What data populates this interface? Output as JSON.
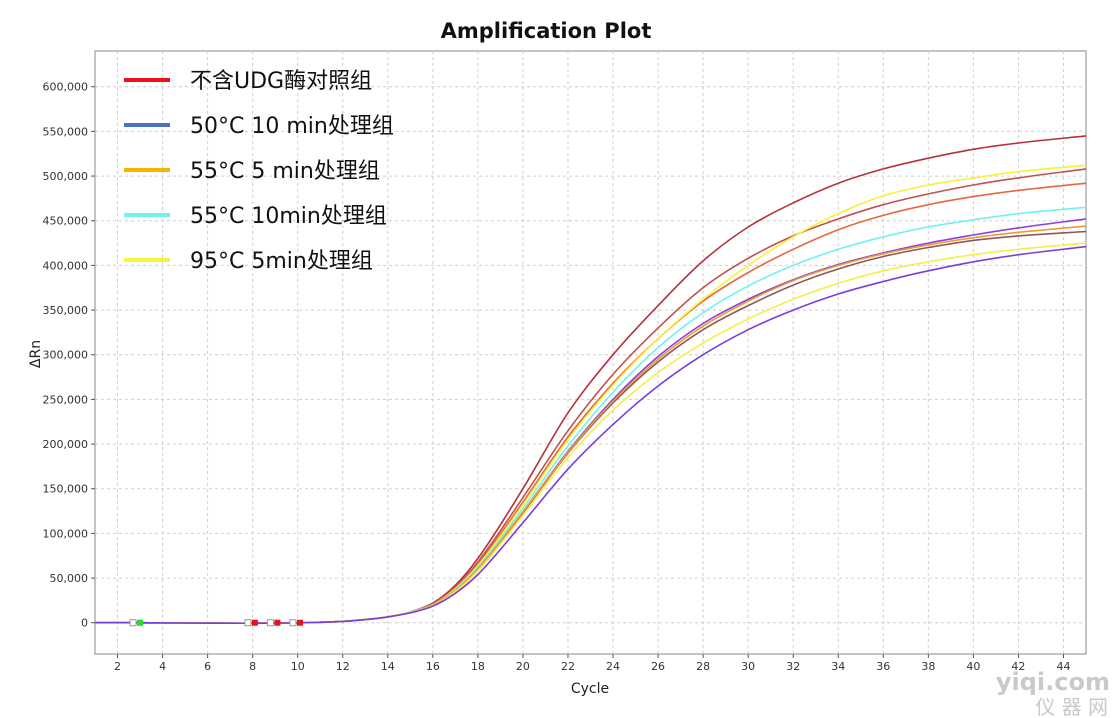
{
  "chart_data": {
    "type": "line",
    "title": "Amplification Plot",
    "xlabel": "Cycle",
    "ylabel": "ΔRn",
    "xlim": [
      1,
      45
    ],
    "ylim": [
      -35000,
      640000
    ],
    "x_ticks": [
      2,
      4,
      6,
      8,
      10,
      12,
      14,
      16,
      18,
      20,
      22,
      24,
      26,
      28,
      30,
      32,
      34,
      36,
      38,
      40,
      42,
      44
    ],
    "y_ticks": [
      0,
      50000,
      100000,
      150000,
      200000,
      250000,
      300000,
      350000,
      400000,
      450000,
      500000,
      550000,
      600000
    ],
    "grid": true,
    "legend_position": "top-left",
    "legend": [
      {
        "label": "不含UDG酶对照组",
        "color": "#e8141c"
      },
      {
        "label": "50°C 10 min处理组",
        "color": "#4a72c4"
      },
      {
        "label": "55°C 5 min处理组",
        "color": "#f5b400"
      },
      {
        "label": "55°C 10min处理组",
        "color": "#6ff2f2"
      },
      {
        "label": "95°C 5min处理组",
        "color": "#f7f23a"
      }
    ],
    "x": [
      1,
      12,
      13,
      14,
      15,
      16,
      17,
      18,
      20,
      22,
      24,
      26,
      28,
      30,
      32,
      34,
      36,
      38,
      40,
      42,
      45
    ],
    "series": [
      {
        "color": "#b5323d",
        "values": [
          0,
          1500,
          3500,
          6500,
          12000,
          22000,
          42000,
          72000,
          150000,
          235000,
          300000,
          355000,
          405000,
          443000,
          470000,
          492000,
          508000,
          520000,
          530000,
          537000,
          545000
        ]
      },
      {
        "color": "#c0504d",
        "values": [
          0,
          1500,
          3500,
          6500,
          12000,
          21000,
          40000,
          68000,
          140000,
          215000,
          278000,
          330000,
          375000,
          408000,
          433000,
          452000,
          468000,
          480000,
          490000,
          498000,
          508000
        ]
      },
      {
        "color": "#e8663c",
        "values": [
          0,
          1500,
          3500,
          6500,
          12000,
          21000,
          39000,
          66000,
          135000,
          208000,
          268000,
          318000,
          360000,
          392000,
          418000,
          440000,
          456000,
          468000,
          477000,
          484000,
          492000
        ]
      },
      {
        "color": "#f7f23a",
        "values": [
          0,
          1500,
          3500,
          6500,
          12000,
          20000,
          38000,
          64000,
          132000,
          205000,
          266000,
          318000,
          362000,
          400000,
          432000,
          458000,
          478000,
          490000,
          498000,
          505000,
          512000
        ]
      },
      {
        "color": "#6ff2f2",
        "values": [
          0,
          1500,
          3500,
          6500,
          12000,
          20000,
          37000,
          62000,
          128000,
          198000,
          258000,
          308000,
          347000,
          377000,
          400000,
          418000,
          432000,
          443000,
          451000,
          458000,
          465000
        ]
      },
      {
        "color": "#8a3fd8",
        "values": [
          0,
          1500,
          3500,
          6500,
          11500,
          19500,
          36000,
          60000,
          124000,
          192000,
          250000,
          298000,
          335000,
          362000,
          384000,
          401000,
          414000,
          425000,
          434000,
          442000,
          452000
        ]
      },
      {
        "color": "#8a5a5a",
        "values": [
          0,
          1500,
          3500,
          6500,
          11500,
          19500,
          36000,
          60000,
          123000,
          190000,
          246000,
          292000,
          328000,
          355000,
          378000,
          396000,
          410000,
          420000,
          428000,
          433000,
          438000
        ]
      },
      {
        "color": "#f09a30",
        "values": [
          0,
          1500,
          3500,
          6500,
          11500,
          19500,
          36000,
          60000,
          124000,
          191000,
          248000,
          295000,
          332000,
          360000,
          383000,
          400000,
          413000,
          423000,
          431000,
          437000,
          444000
        ]
      },
      {
        "color": "#f4ef4a",
        "values": [
          0,
          1500,
          3500,
          6500,
          11500,
          19000,
          35000,
          58000,
          120000,
          185000,
          238000,
          280000,
          313000,
          340000,
          362000,
          380000,
          394000,
          404000,
          412000,
          418000,
          425000
        ]
      },
      {
        "color": "#7b3cdc",
        "values": [
          0,
          1500,
          3500,
          6500,
          11000,
          18500,
          33000,
          54000,
          112000,
          172000,
          222000,
          265000,
          300000,
          328000,
          350000,
          368000,
          382000,
          394000,
          404000,
          412000,
          421000
        ]
      }
    ],
    "threshold_markers": [
      {
        "x": 3.0,
        "color": "#22dd22"
      },
      {
        "x": 8.1,
        "color": "#ee1111"
      },
      {
        "x": 9.1,
        "color": "#ee1111"
      },
      {
        "x": 10.1,
        "color": "#ee1111"
      }
    ]
  },
  "watermark": {
    "line1": "yiqi.com",
    "line2": "仪 器 网"
  }
}
